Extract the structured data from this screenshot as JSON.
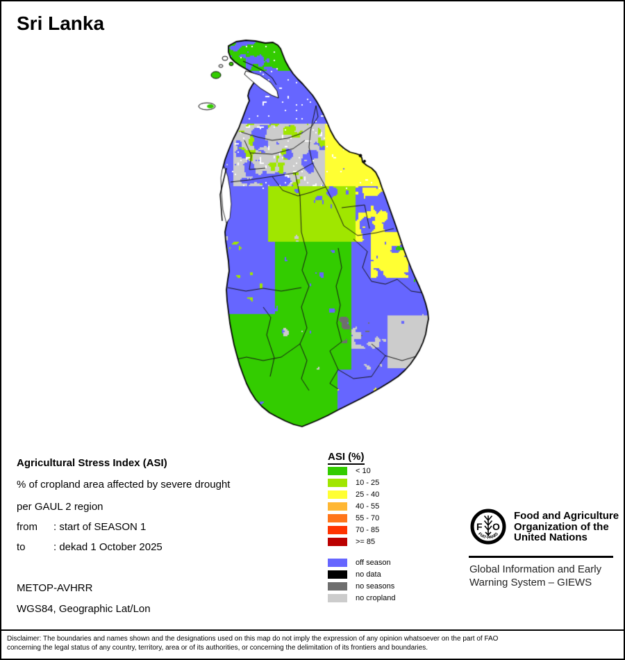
{
  "title": "Sri Lanka",
  "info": {
    "heading": "Agricultural Stress Index (ASI)",
    "subtitle1": "% of cropland area affected by severe drought",
    "subtitle2": "per GAUL 2 region",
    "from_label": "from",
    "from_value": ": start of SEASON 1",
    "to_label": "to",
    "to_value": ": dekad 1 October 2025",
    "sensor": "METOP-AVHRR",
    "projection": "WGS84, Geographic Lat/Lon"
  },
  "legend": {
    "heading": "ASI (%)",
    "asi_classes": [
      {
        "label": "< 10",
        "color": "#33CC00"
      },
      {
        "label": "10 - 25",
        "color": "#A0E600"
      },
      {
        "label": "25 - 40",
        "color": "#FFFF33"
      },
      {
        "label": "40 - 55",
        "color": "#FFB733"
      },
      {
        "label": "55 - 70",
        "color": "#FF751A"
      },
      {
        "label": "70 - 85",
        "color": "#FF3300"
      },
      {
        "label": ">= 85",
        "color": "#BB0000"
      }
    ],
    "other_classes": [
      {
        "label": "off season",
        "color": "#6666FF"
      },
      {
        "label": "no data",
        "color": "#000000"
      },
      {
        "label": "no seasons",
        "color": "#6E6E6E"
      },
      {
        "label": "no cropland",
        "color": "#CCCCCC"
      }
    ]
  },
  "footer": {
    "logo_letters": "FAO",
    "logo_motto": "FIAT·PANIS",
    "org_lines": [
      "Food and Agriculture",
      "Organization of the",
      "United Nations"
    ],
    "giews_lines": [
      "Global Information and Early",
      "Warning System – GIEWS"
    ]
  },
  "disclaimer": {
    "line1": "Disclaimer: The boundaries and names shown and the designations used on this map do not imply the expression of any opinion whatsoever on the part of FAO",
    "line2": "concerning the legal status of any country, territory, area or of its authorities, or concerning the delimitation of its frontiers and boundaries."
  },
  "map": {
    "region": "Sri Lanka",
    "sea_color": "#FFFFFF",
    "boundary_color": "#000000"
  }
}
